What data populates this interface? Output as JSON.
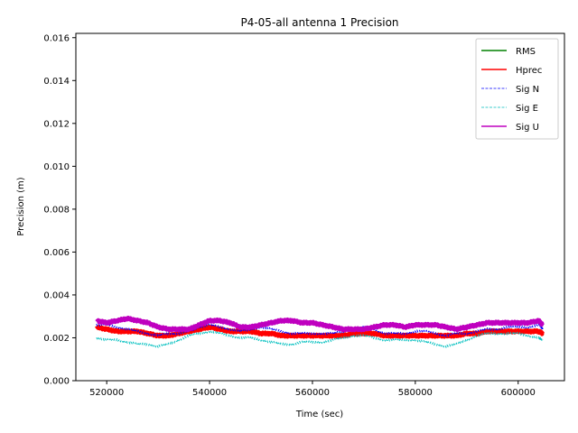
{
  "chart_data": {
    "type": "line",
    "title": "P4-05-all antenna 1 Precision",
    "xlabel": "Time (sec)",
    "ylabel": "Precision (m)",
    "xlim": [
      514000,
      609000
    ],
    "ylim": [
      0.0,
      0.0162
    ],
    "xticks": [
      520000,
      540000,
      560000,
      580000,
      600000
    ],
    "xtick_labels": [
      "520000",
      "540000",
      "560000",
      "580000",
      "600000"
    ],
    "yticks": [
      0.0,
      0.002,
      0.004,
      0.006,
      0.008,
      0.01,
      0.012,
      0.014,
      0.016
    ],
    "ytick_labels": [
      "0.000",
      "0.002",
      "0.004",
      "0.006",
      "0.008",
      "0.010",
      "0.012",
      "0.014",
      "0.016"
    ],
    "legend_position": "top-right",
    "series": [
      {
        "name": "RMS",
        "color": "#008000",
        "style": "solid",
        "x": [],
        "y": []
      },
      {
        "name": "Hprec",
        "color": "#ff0000",
        "style": "solid",
        "x": [
          518000,
          520000,
          522000,
          524000,
          526000,
          528000,
          530000,
          532000,
          534000,
          536000,
          538000,
          540000,
          542000,
          544000,
          546000,
          548000,
          550000,
          552000,
          554000,
          556000,
          558000,
          560000,
          562000,
          564000,
          566000,
          568000,
          570000,
          572000,
          574000,
          576000,
          578000,
          580000,
          582000,
          584000,
          586000,
          588000,
          590000,
          592000,
          594000,
          596000,
          598000,
          600000,
          602000,
          604000,
          604800
        ],
        "y": [
          0.0025,
          0.0024,
          0.0023,
          0.0023,
          0.0023,
          0.0022,
          0.0021,
          0.0021,
          0.0022,
          0.0023,
          0.0024,
          0.0025,
          0.0024,
          0.0023,
          0.0023,
          0.0023,
          0.0022,
          0.0022,
          0.0021,
          0.0021,
          0.0021,
          0.0021,
          0.0021,
          0.0021,
          0.0021,
          0.0022,
          0.0022,
          0.0022,
          0.0021,
          0.0021,
          0.0021,
          0.0021,
          0.0021,
          0.0021,
          0.0021,
          0.0021,
          0.0022,
          0.0022,
          0.0023,
          0.0023,
          0.0023,
          0.0023,
          0.0023,
          0.0023,
          0.0022
        ]
      },
      {
        "name": "Sig N",
        "color": "#0000ff",
        "style": "dashed",
        "x": [
          518000,
          520000,
          522000,
          524000,
          526000,
          528000,
          530000,
          532000,
          534000,
          536000,
          538000,
          540000,
          542000,
          544000,
          546000,
          548000,
          550000,
          552000,
          554000,
          556000,
          558000,
          560000,
          562000,
          564000,
          566000,
          568000,
          570000,
          572000,
          574000,
          576000,
          578000,
          580000,
          582000,
          584000,
          586000,
          588000,
          590000,
          592000,
          594000,
          596000,
          598000,
          600000,
          602000,
          604000,
          604800
        ],
        "y": [
          0.0026,
          0.0026,
          0.0025,
          0.0024,
          0.0023,
          0.0022,
          0.0021,
          0.0022,
          0.0022,
          0.0023,
          0.0025,
          0.0026,
          0.0025,
          0.0024,
          0.0023,
          0.0024,
          0.0025,
          0.0024,
          0.0023,
          0.0022,
          0.0022,
          0.0022,
          0.0022,
          0.0022,
          0.0023,
          0.0024,
          0.0025,
          0.0024,
          0.0022,
          0.0022,
          0.0022,
          0.0023,
          0.0023,
          0.0022,
          0.0021,
          0.0022,
          0.0022,
          0.0023,
          0.0024,
          0.0024,
          0.0025,
          0.0025,
          0.0025,
          0.0026,
          0.0024
        ]
      },
      {
        "name": "Sig E",
        "color": "#00bfbf",
        "style": "dashed",
        "x": [
          518000,
          520000,
          522000,
          524000,
          526000,
          528000,
          530000,
          532000,
          534000,
          536000,
          538000,
          540000,
          542000,
          544000,
          546000,
          548000,
          550000,
          552000,
          554000,
          556000,
          558000,
          560000,
          562000,
          564000,
          566000,
          568000,
          570000,
          572000,
          574000,
          576000,
          578000,
          580000,
          582000,
          584000,
          586000,
          588000,
          590000,
          592000,
          594000,
          596000,
          598000,
          600000,
          602000,
          604000,
          604800
        ],
        "y": [
          0.002,
          0.0019,
          0.0019,
          0.0018,
          0.0017,
          0.0017,
          0.0016,
          0.0017,
          0.0019,
          0.0021,
          0.0022,
          0.0023,
          0.0022,
          0.0021,
          0.002,
          0.002,
          0.0019,
          0.0018,
          0.0017,
          0.0017,
          0.0018,
          0.0018,
          0.0018,
          0.0019,
          0.002,
          0.0021,
          0.0021,
          0.002,
          0.0019,
          0.0019,
          0.0019,
          0.0019,
          0.0018,
          0.0017,
          0.0016,
          0.0017,
          0.0019,
          0.0021,
          0.0022,
          0.0022,
          0.0022,
          0.0022,
          0.0021,
          0.002,
          0.0019
        ]
      },
      {
        "name": "Sig U",
        "color": "#bf00bf",
        "style": "solid",
        "x": [
          518000,
          520000,
          522000,
          524000,
          526000,
          528000,
          530000,
          532000,
          534000,
          536000,
          538000,
          540000,
          542000,
          544000,
          546000,
          548000,
          550000,
          552000,
          554000,
          556000,
          558000,
          560000,
          562000,
          564000,
          566000,
          568000,
          570000,
          572000,
          574000,
          576000,
          578000,
          580000,
          582000,
          584000,
          586000,
          588000,
          590000,
          592000,
          594000,
          596000,
          598000,
          600000,
          602000,
          604000,
          604800
        ],
        "y": [
          0.0028,
          0.0027,
          0.0028,
          0.0029,
          0.0028,
          0.0027,
          0.0025,
          0.0024,
          0.0024,
          0.0024,
          0.0026,
          0.0028,
          0.0028,
          0.0027,
          0.0025,
          0.0025,
          0.0026,
          0.0027,
          0.0028,
          0.0028,
          0.0027,
          0.0027,
          0.0026,
          0.0025,
          0.0024,
          0.0024,
          0.0024,
          0.0025,
          0.0026,
          0.0026,
          0.0025,
          0.0026,
          0.0026,
          0.0026,
          0.0025,
          0.0024,
          0.0025,
          0.0026,
          0.0027,
          0.0027,
          0.0027,
          0.0027,
          0.0027,
          0.0028,
          0.0026
        ]
      }
    ]
  }
}
